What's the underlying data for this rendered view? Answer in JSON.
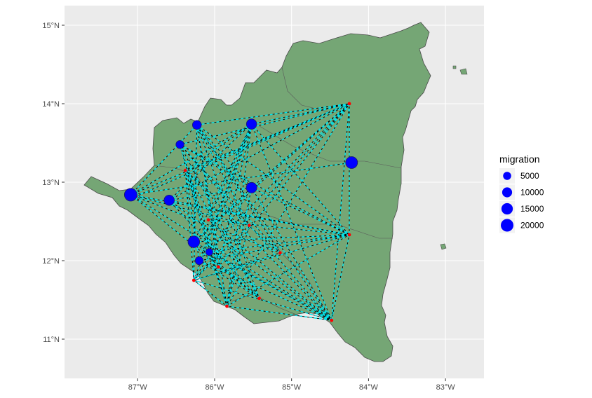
{
  "chart_data": {
    "type": "map",
    "region": "Nicaragua",
    "x_axis": {
      "unit": "longitude",
      "ticks": [
        {
          "value": -87,
          "label": "87°W"
        },
        {
          "value": -86,
          "label": "86°W"
        },
        {
          "value": -85,
          "label": "85°W"
        },
        {
          "value": -84,
          "label": "84°W"
        },
        {
          "value": -83,
          "label": "83°W"
        }
      ]
    },
    "y_axis": {
      "unit": "latitude",
      "ticks": [
        {
          "value": 11,
          "label": "11°N"
        },
        {
          "value": 12,
          "label": "12°N"
        },
        {
          "value": 13,
          "label": "13°N"
        },
        {
          "value": 14,
          "label": "14°N"
        },
        {
          "value": 15,
          "label": "15°N"
        }
      ]
    },
    "xlim": [
      -87.95,
      -82.5
    ],
    "ylim": [
      10.5,
      15.25
    ],
    "grid": true,
    "legend": {
      "title": "migration",
      "position": "right",
      "entries": [
        {
          "value": 5000,
          "label": "5000"
        },
        {
          "value": 10000,
          "label": "10000"
        },
        {
          "value": 15000,
          "label": "15000"
        },
        {
          "value": 20000,
          "label": "20000"
        }
      ]
    },
    "nodes": [
      {
        "id": "n1",
        "lon": -87.09,
        "lat": 12.84,
        "migration": 20000
      },
      {
        "id": "n2",
        "lon": -86.59,
        "lat": 12.77,
        "migration": 11000
      },
      {
        "id": "n3",
        "lon": -86.27,
        "lat": 12.24,
        "migration": 16000
      },
      {
        "id": "n4",
        "lon": -86.45,
        "lat": 13.48,
        "migration": 5000
      },
      {
        "id": "n5",
        "lon": -86.23,
        "lat": 13.73,
        "migration": 7000
      },
      {
        "id": "n6",
        "lon": -85.52,
        "lat": 13.74,
        "migration": 11000
      },
      {
        "id": "n7",
        "lon": -85.52,
        "lat": 12.93,
        "migration": 12000
      },
      {
        "id": "n8",
        "lon": -84.22,
        "lat": 13.25,
        "migration": 17000
      },
      {
        "id": "n9",
        "lon": -84.25,
        "lat": 14.0,
        "migration": 0
      },
      {
        "id": "n10",
        "lon": -84.25,
        "lat": 12.33,
        "migration": 0
      },
      {
        "id": "n11",
        "lon": -84.48,
        "lat": 11.24,
        "migration": 0
      },
      {
        "id": "n12",
        "lon": -85.84,
        "lat": 11.42,
        "migration": 0
      },
      {
        "id": "n13",
        "lon": -86.27,
        "lat": 11.75,
        "migration": 0
      },
      {
        "id": "n14",
        "lon": -86.2,
        "lat": 12.0,
        "migration": 5000
      },
      {
        "id": "n15",
        "lon": -86.07,
        "lat": 12.11,
        "migration": 3000
      },
      {
        "id": "n16",
        "lon": -85.95,
        "lat": 11.92,
        "migration": 0
      },
      {
        "id": "n17",
        "lon": -85.42,
        "lat": 11.52,
        "migration": 0
      },
      {
        "id": "n18",
        "lon": -85.15,
        "lat": 12.1,
        "migration": 0
      },
      {
        "id": "n19",
        "lon": -85.55,
        "lat": 12.45,
        "migration": 0
      },
      {
        "id": "n20",
        "lon": -86.08,
        "lat": 12.52,
        "migration": 0
      },
      {
        "id": "n21",
        "lon": -86.38,
        "lat": 13.15,
        "migration": 0
      },
      {
        "id": "n22",
        "lon": -87.02,
        "lat": 12.82,
        "migration": 0
      }
    ],
    "flows": [
      [
        "n1",
        "n9"
      ],
      [
        "n1",
        "n10"
      ],
      [
        "n1",
        "n11"
      ],
      [
        "n1",
        "n6"
      ],
      [
        "n1",
        "n5"
      ],
      [
        "n1",
        "n8"
      ],
      [
        "n2",
        "n9"
      ],
      [
        "n2",
        "n10"
      ],
      [
        "n2",
        "n11"
      ],
      [
        "n2",
        "n6"
      ],
      [
        "n2",
        "n17"
      ],
      [
        "n3",
        "n9"
      ],
      [
        "n3",
        "n10"
      ],
      [
        "n3",
        "n11"
      ],
      [
        "n3",
        "n6"
      ],
      [
        "n3",
        "n5"
      ],
      [
        "n3",
        "n7"
      ],
      [
        "n4",
        "n9"
      ],
      [
        "n4",
        "n10"
      ],
      [
        "n4",
        "n11"
      ],
      [
        "n4",
        "n12"
      ],
      [
        "n4",
        "n18"
      ],
      [
        "n5",
        "n9"
      ],
      [
        "n5",
        "n10"
      ],
      [
        "n5",
        "n11"
      ],
      [
        "n5",
        "n12"
      ],
      [
        "n5",
        "n13"
      ],
      [
        "n5",
        "n17"
      ],
      [
        "n6",
        "n10"
      ],
      [
        "n6",
        "n11"
      ],
      [
        "n6",
        "n12"
      ],
      [
        "n6",
        "n13"
      ],
      [
        "n6",
        "n16"
      ],
      [
        "n6",
        "n9"
      ],
      [
        "n7",
        "n9"
      ],
      [
        "n7",
        "n10"
      ],
      [
        "n7",
        "n11"
      ],
      [
        "n7",
        "n12"
      ],
      [
        "n7",
        "n13"
      ],
      [
        "n9",
        "n10"
      ],
      [
        "n9",
        "n11"
      ],
      [
        "n9",
        "n12"
      ],
      [
        "n9",
        "n13"
      ],
      [
        "n9",
        "n14"
      ],
      [
        "n9",
        "n16"
      ],
      [
        "n10",
        "n11"
      ],
      [
        "n10",
        "n12"
      ],
      [
        "n10",
        "n13"
      ],
      [
        "n10",
        "n14"
      ],
      [
        "n10",
        "n15"
      ],
      [
        "n10",
        "n20"
      ],
      [
        "n11",
        "n12"
      ],
      [
        "n11",
        "n13"
      ],
      [
        "n11",
        "n14"
      ],
      [
        "n11",
        "n15"
      ],
      [
        "n11",
        "n21"
      ],
      [
        "n12",
        "n13"
      ],
      [
        "n12",
        "n21"
      ],
      [
        "n12",
        "n5"
      ],
      [
        "n12",
        "n19"
      ],
      [
        "n13",
        "n21"
      ],
      [
        "n13",
        "n19"
      ],
      [
        "n13",
        "n18"
      ],
      [
        "n14",
        "n6"
      ],
      [
        "n14",
        "n21"
      ],
      [
        "n15",
        "n6"
      ],
      [
        "n15",
        "n4"
      ],
      [
        "n16",
        "n5"
      ],
      [
        "n16",
        "n4"
      ],
      [
        "n17",
        "n4"
      ],
      [
        "n17",
        "n21"
      ],
      [
        "n17",
        "n1"
      ],
      [
        "n18",
        "n5"
      ],
      [
        "n18",
        "n1"
      ],
      [
        "n18",
        "n21"
      ],
      [
        "n19",
        "n5"
      ],
      [
        "n19",
        "n1"
      ],
      [
        "n20",
        "n6"
      ],
      [
        "n20",
        "n11"
      ],
      [
        "n21",
        "n6"
      ],
      [
        "n21",
        "n9"
      ],
      [
        "n22",
        "n9"
      ],
      [
        "n3",
        "n17"
      ],
      [
        "n2",
        "n7"
      ],
      [
        "n4",
        "n7"
      ],
      [
        "n5",
        "n7"
      ],
      [
        "n14",
        "n17"
      ],
      [
        "n15",
        "n12"
      ]
    ],
    "colors": {
      "panel_background": "#ebebeb",
      "grid": "#ffffff",
      "land": "#75a675",
      "land_border": "#4a4a4a",
      "flow_line": "#000000",
      "flow_dash": "#00e5ee",
      "origin_point": "#ff0000",
      "migration_point": "#0000ff"
    }
  }
}
